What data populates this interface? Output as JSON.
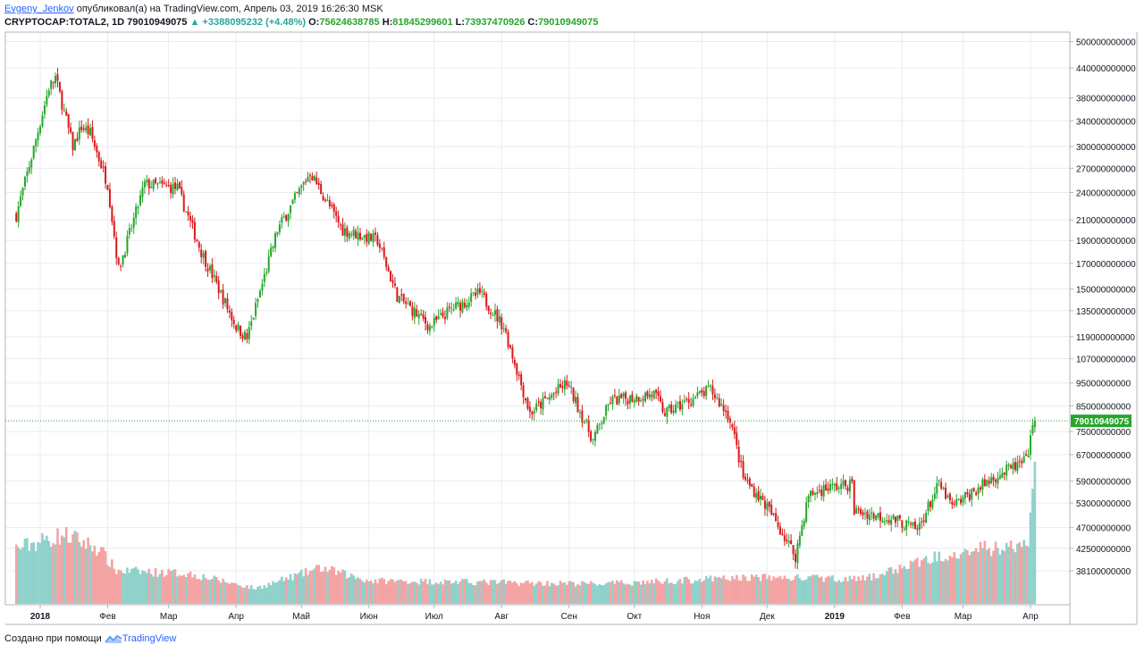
{
  "header": {
    "author": "Evgeny_Jenkov",
    "published": "опубликовал(а) на TradingView.com, Апрель 03, 2019 16:26:30 MSK",
    "symbol": "CRYPTOCAP:TOTAL2, 1D",
    "last": "79010949075",
    "change": "▲ +3388095232 (+4.48%)",
    "o_label": "O:",
    "o_value": "75624638785",
    "h_label": "H:",
    "h_value": "81845299601",
    "l_label": "L:",
    "l_value": "73937470926",
    "c_label": "C:",
    "c_value": "79010949075"
  },
  "footer": {
    "prefix": "Создано при помощи",
    "brand": "TradingView",
    "logo_icon": "tradingview-logo-icon"
  },
  "colors": {
    "up": "#26a62b",
    "down": "#d9191c",
    "vol_up": "#8fd1cb",
    "vol_down": "#f4a3a3",
    "grid": "#e8ecf1",
    "price_line": "#26a62b"
  },
  "chart_data": {
    "type": "candlestick",
    "scale": "log",
    "grid": true,
    "ylim": [
      36000000000,
      510000000000
    ],
    "y_ticks": [
      500000000000,
      440000000000,
      380000000000,
      340000000000,
      300000000000,
      270000000000,
      240000000000,
      210000000000,
      190000000000,
      170000000000,
      150000000000,
      135000000000,
      119000000000,
      107000000000,
      95000000000,
      85000000000,
      75000000000,
      67000000000,
      59000000000,
      53000000000,
      47000000000,
      42500000000,
      38100000000
    ],
    "x_ticks": [
      "2018",
      "Фев",
      "Мар",
      "Апр",
      "Май",
      "Июн",
      "Июл",
      "Авг",
      "Сен",
      "Окт",
      "Ноя",
      "Дек",
      "2019",
      "Фев",
      "Мар",
      "Апр"
    ],
    "x_tick_dates": [
      "2018-01-01",
      "2018-02-01",
      "2018-03-01",
      "2018-04-01",
      "2018-05-01",
      "2018-06-01",
      "2018-07-01",
      "2018-08-01",
      "2018-09-01",
      "2018-10-01",
      "2018-11-01",
      "2018-12-01",
      "2019-01-01",
      "2019-02-01",
      "2019-03-01",
      "2019-04-01"
    ],
    "last_price": 79010949075,
    "last_price_label": "79010949075",
    "series": [
      {
        "date": "2017-12-21",
        "close": 215000000000
      },
      {
        "date": "2017-12-28",
        "close": 285000000000
      },
      {
        "date": "2018-01-05",
        "close": 400000000000
      },
      {
        "date": "2018-01-08",
        "close": 420000000000
      },
      {
        "date": "2018-01-16",
        "close": 300000000000
      },
      {
        "date": "2018-01-20",
        "close": 330000000000
      },
      {
        "date": "2018-01-24",
        "close": 320000000000
      },
      {
        "date": "2018-02-01",
        "close": 250000000000
      },
      {
        "date": "2018-02-06",
        "close": 165000000000
      },
      {
        "date": "2018-02-18",
        "close": 250000000000
      },
      {
        "date": "2018-03-05",
        "close": 245000000000
      },
      {
        "date": "2018-03-16",
        "close": 180000000000
      },
      {
        "date": "2018-04-01",
        "close": 125000000000
      },
      {
        "date": "2018-04-06",
        "close": 118000000000
      },
      {
        "date": "2018-04-20",
        "close": 200000000000
      },
      {
        "date": "2018-05-05",
        "close": 265000000000
      },
      {
        "date": "2018-05-20",
        "close": 200000000000
      },
      {
        "date": "2018-06-05",
        "close": 190000000000
      },
      {
        "date": "2018-06-14",
        "close": 145000000000
      },
      {
        "date": "2018-06-29",
        "close": 125000000000
      },
      {
        "date": "2018-07-08",
        "close": 135000000000
      },
      {
        "date": "2018-07-22",
        "close": 147000000000
      },
      {
        "date": "2018-08-02",
        "close": 125000000000
      },
      {
        "date": "2018-08-14",
        "close": 82000000000
      },
      {
        "date": "2018-08-31",
        "close": 95000000000
      },
      {
        "date": "2018-09-12",
        "close": 72000000000
      },
      {
        "date": "2018-09-20",
        "close": 87000000000
      },
      {
        "date": "2018-10-10",
        "close": 90000000000
      },
      {
        "date": "2018-10-15",
        "close": 82000000000
      },
      {
        "date": "2018-11-05",
        "close": 92000000000
      },
      {
        "date": "2018-11-14",
        "close": 80000000000
      },
      {
        "date": "2018-11-20",
        "close": 60000000000
      },
      {
        "date": "2018-12-01",
        "close": 52000000000
      },
      {
        "date": "2018-12-14",
        "close": 41000000000
      },
      {
        "date": "2018-12-20",
        "close": 55000000000
      },
      {
        "date": "2018-12-28",
        "close": 57000000000
      },
      {
        "date": "2019-01-09",
        "close": 58000000000
      },
      {
        "date": "2019-01-10",
        "close": 51000000000
      },
      {
        "date": "2019-01-28",
        "close": 49000000000
      },
      {
        "date": "2019-02-08",
        "close": 46500000000
      },
      {
        "date": "2019-02-18",
        "close": 58000000000
      },
      {
        "date": "2019-02-24",
        "close": 52000000000
      },
      {
        "date": "2019-03-15",
        "close": 60000000000
      },
      {
        "date": "2019-03-30",
        "close": 65000000000
      },
      {
        "date": "2019-04-02",
        "close": 75600000000
      },
      {
        "date": "2019-04-03",
        "close": 79000000000
      }
    ],
    "volume_profile": [
      {
        "date": "2017-12-21",
        "v": 1.0
      },
      {
        "date": "2018-01-12",
        "v": 1.25
      },
      {
        "date": "2018-01-28",
        "v": 1.0
      },
      {
        "date": "2018-02-05",
        "v": 0.6
      },
      {
        "date": "2018-03-10",
        "v": 0.55
      },
      {
        "date": "2018-04-10",
        "v": 0.28
      },
      {
        "date": "2018-05-10",
        "v": 0.65
      },
      {
        "date": "2018-06-01",
        "v": 0.42
      },
      {
        "date": "2018-09-15",
        "v": 0.36
      },
      {
        "date": "2018-11-25",
        "v": 0.48
      },
      {
        "date": "2019-01-15",
        "v": 0.45
      },
      {
        "date": "2019-02-25",
        "v": 0.95
      },
      {
        "date": "2019-03-31",
        "v": 1.05
      },
      {
        "date": "2019-04-03",
        "v": 2.6
      }
    ]
  }
}
